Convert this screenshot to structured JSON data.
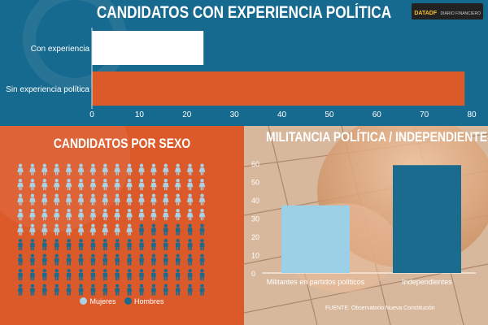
{
  "logo": {
    "brand": "DATADF",
    "sub": "DIARIO FINANCIERO"
  },
  "colors": {
    "blue_panel": "#176a8f",
    "orange_panel": "#dc5a2a",
    "white_bar": "#ffffff",
    "orange_bar": "#dc5a2a",
    "mujeres": "#a8d3e6",
    "hombres": "#1b6b8e",
    "militantes_bar": "#9bd0e7",
    "independientes_bar": "#1b6b8e"
  },
  "source": "FUENTE: Observatorio Nueva Constitución",
  "chart_data": [
    {
      "type": "bar",
      "orientation": "horizontal",
      "title": "CANDIDATOS CON EXPERIENCIA POLÍTICA",
      "categories": [
        "Con experiencia",
        "Sin experiencia política"
      ],
      "values": [
        23.5,
        78.5
      ],
      "xlim": [
        0,
        80
      ],
      "xticks": [
        0,
        10,
        20,
        30,
        40,
        50,
        60,
        70,
        80
      ],
      "grid": false
    },
    {
      "type": "table",
      "title": "CANDIDATOS POR SEXO",
      "series": [
        {
          "name": "Mujeres",
          "count": 74
        },
        {
          "name": "Hombres",
          "count": 80
        }
      ],
      "grid_columns": 16,
      "grid_rows": 9,
      "legend_position": "bottom"
    },
    {
      "type": "bar",
      "title": "MILITANCIA POLÍTICA / INDEPENDIENTES",
      "categories": [
        "Militantes en partidos políticos",
        "Independientes"
      ],
      "values": [
        37,
        59
      ],
      "ylim": [
        0,
        60
      ],
      "yticks": [
        0,
        10,
        20,
        30,
        40,
        50,
        60
      ],
      "grid": false
    }
  ]
}
